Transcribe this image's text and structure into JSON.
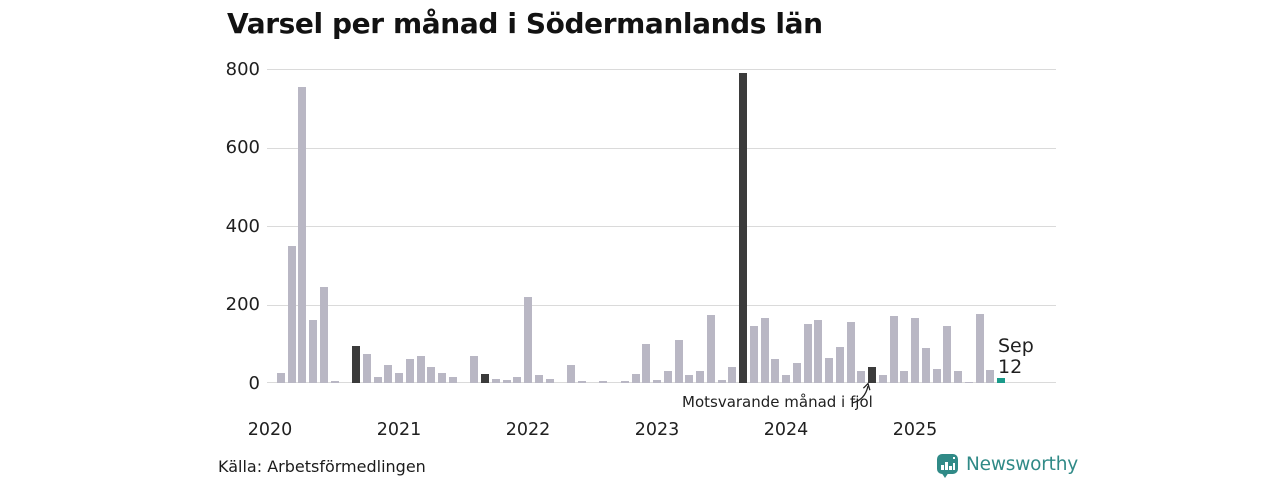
{
  "title": "Varsel per månad i Södermanlands län",
  "annotation": {
    "text": "Motsvarande månad i fjol"
  },
  "current_label": {
    "month": "Sep",
    "value": "12"
  },
  "footer": {
    "source": "Källa: Arbetsförmedlingen",
    "brand": "Newsworthy"
  },
  "colors": {
    "bar": "#b9b7c4",
    "september": "#3b3b3b",
    "current": "#1a9a8a",
    "gridline": "#dadada",
    "brand": "#308a87",
    "text": "#1f1f1f"
  },
  "chart_data": {
    "type": "bar",
    "title": "Varsel per månad i Södermanlands län",
    "xlabel": "",
    "ylabel": "",
    "ylim": [
      0,
      800
    ],
    "yticks": [
      0,
      200,
      400,
      600,
      800
    ],
    "grid": "horizontal",
    "x_tick_labels": [
      "2020",
      "2021",
      "2022",
      "2023",
      "2024",
      "2025"
    ],
    "start_month": "2020-01",
    "end_month": "2025-09",
    "values_by_year": {
      "2020": [
        0,
        25,
        350,
        755,
        160,
        245,
        5,
        0,
        95,
        75,
        15,
        45
      ],
      "2021": [
        25,
        62,
        68,
        40,
        25,
        16,
        0,
        70,
        22,
        11,
        7,
        15
      ],
      "2022": [
        220,
        20,
        10,
        0,
        45,
        5,
        0,
        5,
        0,
        6,
        22,
        100
      ],
      "2023": [
        8,
        30,
        110,
        20,
        30,
        172,
        8,
        42,
        790,
        145,
        166,
        62
      ],
      "2024": [
        20,
        52,
        150,
        160,
        63,
        92,
        155,
        30,
        40,
        20,
        170,
        30
      ],
      "2025": [
        165,
        88,
        35,
        146,
        30,
        3,
        175,
        33,
        12
      ]
    },
    "highlights": {
      "september_bars_dark": true,
      "september_color": "#3b3b3b",
      "annotated_bar": "2024-09",
      "annotation_text": "Motsvarande månad i fjol",
      "current_bar": "2025-09",
      "current_bar_color": "#1a9a8a",
      "current_bar_label": "Sep 12"
    }
  }
}
